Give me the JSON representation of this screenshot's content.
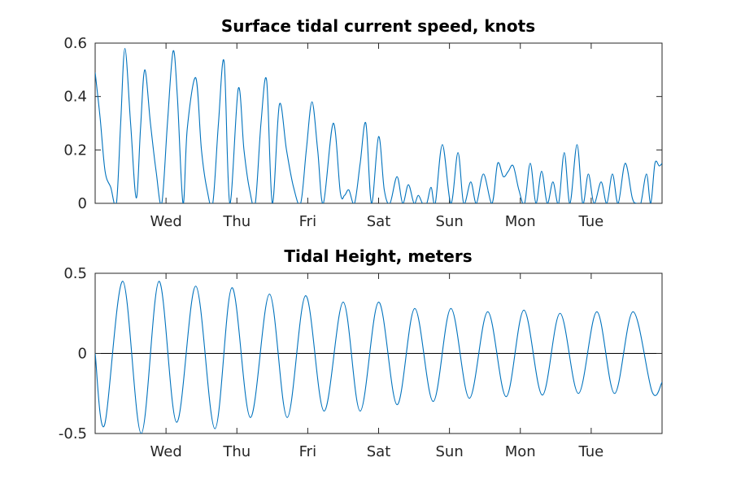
{
  "chart_data": [
    {
      "type": "line",
      "title": "Surface tidal current speed, knots",
      "xlabel": "",
      "ylabel": "",
      "xlim": [
        0,
        8.0
      ],
      "ylim": [
        0,
        0.6
      ],
      "yticks": [
        0,
        0.2,
        0.4,
        0.6
      ],
      "ytick_labels": [
        "0",
        "0.2",
        "0.4",
        "0.6"
      ],
      "xticks": [
        1,
        2,
        3,
        4,
        5,
        6,
        7
      ],
      "xtick_labels": [
        "Wed",
        "Thu",
        "Fri",
        "Sat",
        "Sun",
        "Mon",
        "Tue"
      ],
      "grid": false,
      "color": "#0072bd",
      "series": [
        {
          "x": [
            0.0,
            0.07,
            0.14,
            0.22,
            0.3,
            0.36,
            0.42,
            0.5,
            0.58,
            0.64,
            0.7,
            0.78,
            0.86,
            0.94,
            1.02,
            1.1,
            1.16,
            1.24,
            1.3,
            1.42,
            1.5,
            1.58,
            1.66,
            1.74,
            1.82,
            1.9,
            2.02,
            2.1,
            2.18,
            2.26,
            2.34,
            2.42,
            2.5,
            2.6,
            2.7,
            2.8,
            2.9,
            2.98,
            3.06,
            3.14,
            3.22,
            3.36,
            3.46,
            3.52,
            3.58,
            3.66,
            3.74,
            3.82,
            3.9,
            4.0,
            4.08,
            4.16,
            4.26,
            4.34,
            4.42,
            4.5,
            4.56,
            4.62,
            4.68,
            4.74,
            4.8,
            4.9,
            5.02,
            5.12,
            5.2,
            5.3,
            5.38,
            5.48,
            5.6,
            5.68,
            5.76,
            5.83,
            5.9,
            5.98,
            6.06,
            6.14,
            6.22,
            6.3,
            6.38,
            6.46,
            6.54,
            6.62,
            6.7,
            6.8,
            6.88,
            6.96,
            7.04,
            7.14,
            7.22,
            7.3,
            7.38,
            7.48,
            7.58,
            7.64,
            7.7,
            7.78,
            7.84,
            7.9,
            7.96,
            8.0
          ],
          "y": [
            0.49,
            0.32,
            0.12,
            0.06,
            0.0,
            0.3,
            0.58,
            0.3,
            0.02,
            0.28,
            0.5,
            0.3,
            0.12,
            0.0,
            0.3,
            0.57,
            0.4,
            0.0,
            0.28,
            0.47,
            0.2,
            0.05,
            0.0,
            0.3,
            0.53,
            0.0,
            0.43,
            0.2,
            0.05,
            0.0,
            0.3,
            0.46,
            0.0,
            0.37,
            0.2,
            0.06,
            0.0,
            0.2,
            0.38,
            0.2,
            0.0,
            0.3,
            0.04,
            0.03,
            0.05,
            0.0,
            0.15,
            0.3,
            0.0,
            0.25,
            0.05,
            0.0,
            0.1,
            0.0,
            0.07,
            0.0,
            0.03,
            0.0,
            0.0,
            0.06,
            0.0,
            0.22,
            0.0,
            0.19,
            0.0,
            0.08,
            0.0,
            0.11,
            0.0,
            0.15,
            0.1,
            0.12,
            0.14,
            0.05,
            0.0,
            0.15,
            0.0,
            0.12,
            0.0,
            0.08,
            0.0,
            0.19,
            0.0,
            0.22,
            0.0,
            0.11,
            0.0,
            0.08,
            0.0,
            0.11,
            0.0,
            0.15,
            0.02,
            0.0,
            0.0,
            0.11,
            0.0,
            0.15,
            0.14,
            0.15
          ]
        }
      ]
    },
    {
      "type": "line",
      "title": "Tidal Height, meters",
      "xlabel": "",
      "ylabel": "",
      "xlim": [
        0,
        8.0
      ],
      "ylim": [
        -0.5,
        0.5
      ],
      "yticks": [
        -0.5,
        0,
        0.5
      ],
      "ytick_labels": [
        "-0.5",
        "0",
        "0.5"
      ],
      "xticks": [
        1,
        2,
        3,
        4,
        5,
        6,
        7
      ],
      "xtick_labels": [
        "Wed",
        "Thu",
        "Fri",
        "Sat",
        "Sun",
        "Mon",
        "Tue"
      ],
      "grid": false,
      "zero_line": true,
      "color": "#0072bd",
      "series": [
        {
          "x": [
            0.0,
            0.13,
            0.39,
            0.65,
            0.9,
            1.15,
            1.42,
            1.69,
            1.93,
            2.19,
            2.46,
            2.71,
            2.97,
            3.23,
            3.5,
            3.74,
            4.0,
            4.26,
            4.51,
            4.77,
            5.02,
            5.28,
            5.54,
            5.8,
            6.05,
            6.31,
            6.56,
            6.82,
            7.08,
            7.33,
            7.59,
            7.86,
            8.0
          ],
          "y": [
            0.0,
            -0.45,
            0.45,
            -0.5,
            0.45,
            -0.43,
            0.42,
            -0.47,
            0.41,
            -0.4,
            0.37,
            -0.4,
            0.36,
            -0.36,
            0.32,
            -0.36,
            0.32,
            -0.32,
            0.28,
            -0.3,
            0.28,
            -0.28,
            0.26,
            -0.27,
            0.27,
            -0.26,
            0.25,
            -0.25,
            0.26,
            -0.25,
            0.26,
            -0.24,
            -0.18
          ]
        }
      ]
    }
  ]
}
